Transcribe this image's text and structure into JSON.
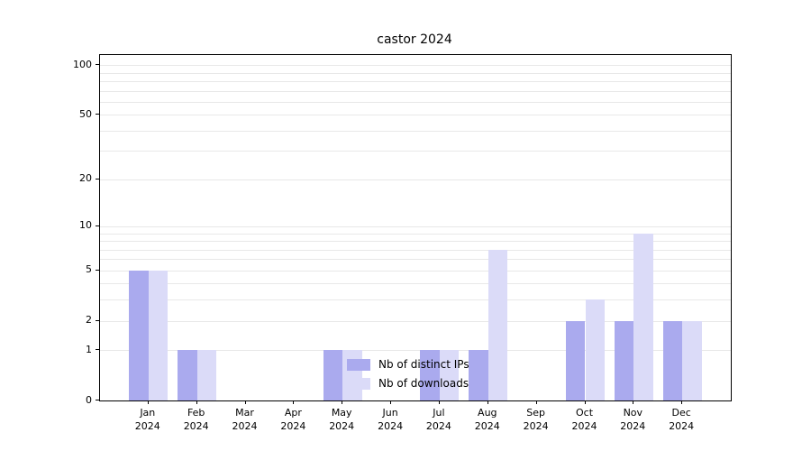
{
  "title": "castor 2024",
  "chart_data": {
    "type": "bar",
    "title": "castor 2024",
    "categories": [
      "Jan 2024",
      "Feb 2024",
      "Mar 2024",
      "Apr 2024",
      "May 2024",
      "Jun 2024",
      "Jul 2024",
      "Aug 2024",
      "Sep 2024",
      "Oct 2024",
      "Nov 2024",
      "Dec 2024"
    ],
    "series": [
      {
        "name": "Nb of distinct IPs",
        "color": "#aaaaee",
        "values": [
          5,
          1,
          0,
          0,
          1,
          0,
          1,
          1,
          0,
          2,
          2,
          2
        ]
      },
      {
        "name": "Nb of downloads",
        "color": "#dbdbf8",
        "values": [
          5,
          1,
          0,
          0,
          1,
          0,
          1,
          7,
          0,
          3,
          9,
          2
        ]
      }
    ],
    "yticks": [
      0,
      1,
      2,
      5,
      10,
      20,
      50,
      100
    ],
    "grid_values": [
      1,
      2,
      3,
      4,
      5,
      6,
      7,
      8,
      9,
      10,
      20,
      30,
      40,
      50,
      60,
      70,
      80,
      90,
      100
    ],
    "scale": "log1p",
    "ylim": [
      0,
      115
    ],
    "grid": "horizontal",
    "legend_position": "lower-center-inside",
    "grid_color": "#e8e8e8",
    "axis_color": "#000000"
  }
}
